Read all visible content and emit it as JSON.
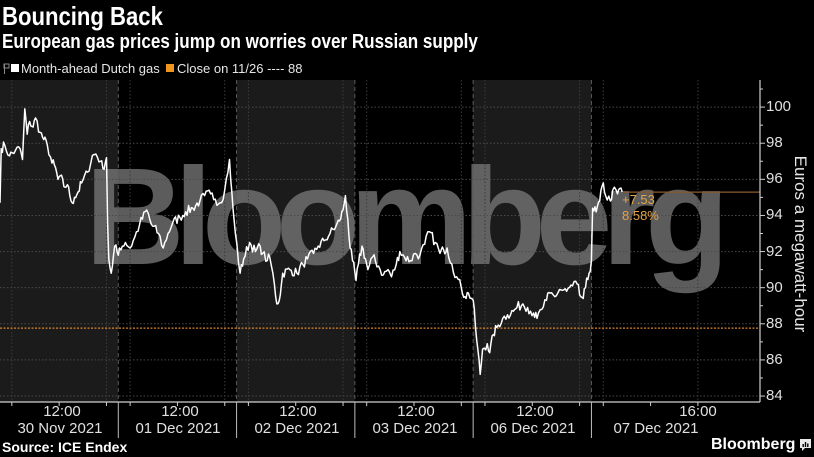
{
  "header": {
    "title": "Bouncing Back",
    "subtitle": "European gas prices jump on worries over Russian supply"
  },
  "legend": {
    "items": [
      {
        "label": "Month-ahead Dutch gas",
        "color": "#ffffff"
      },
      {
        "label": "Close on 11/26 ---- 88",
        "color": "#f0961e"
      }
    ]
  },
  "watermark": "Bloomberg",
  "annotation": {
    "change": "+7.53",
    "percent": "8.58%",
    "color": "#e3a447"
  },
  "footer": {
    "source": "Source: ICE Endex",
    "brand": "Bloomberg"
  },
  "colors": {
    "background": "#000000",
    "session_band": "#1b1b1b",
    "line": "#ffffff",
    "close_line": "#d9842b",
    "last_value_line": "#8a5a2c",
    "grid": "#4a4a4a",
    "axis": "#cfcfcf"
  },
  "chart_data": {
    "type": "line",
    "title": "Bouncing Back",
    "subtitle": "European gas prices jump on worries over Russian supply",
    "xlabel": "",
    "ylabel": "Euros a megawatt-hour",
    "ylim": [
      83.67,
      101.5
    ],
    "yticks": [
      "84",
      "86",
      "88",
      "90",
      "92",
      "94",
      "96",
      "98",
      "100"
    ],
    "ytick_values": [
      84,
      86,
      88,
      90,
      92,
      94,
      96,
      98,
      100
    ],
    "grid": true,
    "legend_position": "top-left",
    "y_axis_side": "right",
    "sessions": [
      "30 Nov 2021",
      "01 Dec 2021",
      "02 Dec 2021",
      "03 Dec 2021",
      "06 Dec 2021",
      "07 Dec 2021"
    ],
    "session_hours": [
      7,
      17
    ],
    "x_range_hours": [
      0,
      64.25
    ],
    "x_ticks": [
      {
        "time": "12:00",
        "date": "30 Nov 2021"
      },
      {
        "time": "12:00",
        "date": "01 Dec 2021"
      },
      {
        "time": "12:00",
        "date": "02 Dec 2021"
      },
      {
        "time": "12:00",
        "date": "03 Dec 2021"
      },
      {
        "time": "12:00",
        "date": "06 Dec 2021"
      },
      {
        "time": "16:00",
        "date": "07 Dec 2021"
      }
    ],
    "series": [
      {
        "name": "Month-ahead Dutch gas",
        "color": "#ffffff",
        "points": [
          [
            0,
            94.7
          ],
          [
            0.1,
            97.7
          ],
          [
            0.4,
            97.9
          ],
          [
            0.8,
            97.3
          ],
          [
            1.3,
            97.6
          ],
          [
            1.7,
            97.7
          ],
          [
            1.9,
            97.1
          ],
          [
            2.1,
            99.9
          ],
          [
            2.3,
            98.5
          ],
          [
            2.5,
            99.2
          ],
          [
            2.8,
            98.9
          ],
          [
            3.0,
            99.4
          ],
          [
            3.4,
            98.6
          ],
          [
            3.7,
            98.2
          ],
          [
            4.0,
            97.9
          ],
          [
            4.4,
            96.9
          ],
          [
            4.6,
            96.8
          ],
          [
            4.9,
            96.0
          ],
          [
            5.1,
            96.2
          ],
          [
            5.4,
            95.6
          ],
          [
            5.7,
            95.7
          ],
          [
            5.9,
            95.1
          ],
          [
            6.1,
            94.7
          ],
          [
            6.3,
            95.0
          ],
          [
            6.6,
            95.3
          ],
          [
            6.9,
            95.8
          ],
          [
            7.4,
            96.4
          ],
          [
            7.8,
            97.3
          ],
          [
            8.1,
            97.4
          ],
          [
            8.5,
            97.0
          ],
          [
            8.7,
            96.6
          ],
          [
            9.0,
            97.2
          ],
          [
            9.1,
            93.6
          ],
          [
            9.2,
            91.6
          ],
          [
            9.4,
            90.8
          ],
          [
            9.5,
            91.2
          ],
          [
            9.7,
            92.3
          ],
          [
            10.0,
            91.8
          ],
          [
            10.1,
            92.2
          ],
          [
            10.6,
            92.5
          ],
          [
            11.0,
            92.2
          ],
          [
            11.4,
            92.8
          ],
          [
            11.8,
            93.5
          ],
          [
            12.4,
            94.3
          ],
          [
            12.8,
            93.5
          ],
          [
            13.4,
            93.0
          ],
          [
            13.8,
            92.2
          ],
          [
            14.2,
            93.0
          ],
          [
            14.6,
            93.6
          ],
          [
            15.2,
            93.9
          ],
          [
            15.7,
            94.2
          ],
          [
            16.3,
            94.4
          ],
          [
            16.9,
            94.8
          ],
          [
            17.3,
            95.1
          ],
          [
            17.8,
            95.2
          ],
          [
            18.2,
            94.9
          ],
          [
            18.6,
            94.7
          ],
          [
            19.0,
            95.4
          ],
          [
            19.4,
            97.1
          ],
          [
            19.5,
            96.0
          ],
          [
            19.7,
            94.4
          ],
          [
            19.9,
            93.0
          ],
          [
            20.3,
            90.8
          ],
          [
            20.6,
            91.6
          ],
          [
            21.1,
            92.5
          ],
          [
            21.6,
            92.0
          ],
          [
            22.0,
            92.3
          ],
          [
            22.2,
            91.9
          ],
          [
            22.6,
            91.5
          ],
          [
            22.8,
            91.7
          ],
          [
            23.2,
            90.2
          ],
          [
            23.4,
            89.1
          ],
          [
            23.7,
            89.6
          ],
          [
            23.9,
            90.8
          ],
          [
            24.5,
            91.0
          ],
          [
            25.1,
            90.8
          ],
          [
            25.6,
            91.3
          ],
          [
            26.0,
            91.6
          ],
          [
            26.5,
            91.9
          ],
          [
            26.9,
            92.3
          ],
          [
            27.4,
            92.6
          ],
          [
            27.9,
            93.0
          ],
          [
            28.4,
            93.4
          ],
          [
            28.7,
            93.7
          ],
          [
            29.0,
            94.3
          ],
          [
            29.2,
            95.1
          ],
          [
            29.4,
            93.8
          ],
          [
            29.6,
            92.2
          ],
          [
            29.8,
            91.5
          ],
          [
            30.1,
            90.4
          ],
          [
            30.3,
            91.3
          ],
          [
            30.6,
            92.3
          ],
          [
            30.9,
            91.6
          ],
          [
            31.1,
            91.0
          ],
          [
            31.5,
            91.7
          ],
          [
            32.0,
            91.2
          ],
          [
            32.4,
            90.7
          ],
          [
            32.8,
            91.0
          ],
          [
            33.1,
            90.6
          ],
          [
            33.5,
            91.3
          ],
          [
            33.8,
            92.0
          ],
          [
            34.2,
            91.7
          ],
          [
            34.7,
            91.5
          ],
          [
            35.1,
            91.9
          ],
          [
            35.5,
            91.8
          ],
          [
            35.9,
            92.4
          ],
          [
            36.3,
            93.1
          ],
          [
            36.8,
            92.5
          ],
          [
            37.2,
            91.9
          ],
          [
            37.5,
            92.1
          ],
          [
            37.8,
            92.2
          ],
          [
            38.2,
            91.3
          ],
          [
            38.6,
            90.6
          ],
          [
            39.0,
            90.0
          ],
          [
            39.3,
            89.5
          ],
          [
            39.6,
            89.7
          ],
          [
            40.0,
            89.3
          ],
          [
            40.3,
            87.1
          ],
          [
            40.6,
            85.2
          ],
          [
            40.8,
            86.6
          ],
          [
            41.2,
            86.9
          ],
          [
            41.4,
            86.4
          ],
          [
            41.7,
            87.4
          ],
          [
            42.0,
            87.8
          ],
          [
            42.5,
            88.3
          ],
          [
            42.9,
            88.5
          ],
          [
            43.4,
            88.7
          ],
          [
            43.7,
            88.9
          ],
          [
            44.2,
            89.1
          ],
          [
            44.6,
            88.9
          ],
          [
            45.1,
            88.6
          ],
          [
            45.4,
            88.3
          ],
          [
            45.8,
            88.8
          ],
          [
            46.2,
            89.3
          ],
          [
            46.5,
            89.7
          ],
          [
            46.9,
            89.5
          ],
          [
            47.3,
            89.9
          ],
          [
            47.9,
            89.8
          ],
          [
            48.4,
            90.1
          ],
          [
            48.8,
            90.2
          ],
          [
            49.0,
            89.6
          ],
          [
            49.3,
            89.4
          ],
          [
            49.5,
            90.0
          ],
          [
            49.8,
            90.8
          ],
          [
            50.0,
            91.5
          ],
          [
            50.1,
            94.4
          ],
          [
            50.4,
            94.2
          ],
          [
            50.7,
            94.8
          ],
          [
            51.0,
            95.8
          ],
          [
            51.2,
            95.1
          ],
          [
            51.6,
            94.8
          ],
          [
            51.8,
            95.4
          ],
          [
            52.2,
            95.2
          ],
          [
            52.4,
            95.5
          ],
          [
            52.6,
            95.3
          ]
        ]
      }
    ],
    "reference_lines": [
      {
        "name": "Close on 11/26",
        "label": "88",
        "value": 87.76,
        "style": "dotted",
        "color": "#d9842b"
      }
    ],
    "last_value": 95.29,
    "annotations": [
      {
        "text": "+7.53",
        "meaning": "change vs close on 11/26"
      },
      {
        "text": "8.58%",
        "meaning": "percent change vs close on 11/26"
      }
    ]
  }
}
